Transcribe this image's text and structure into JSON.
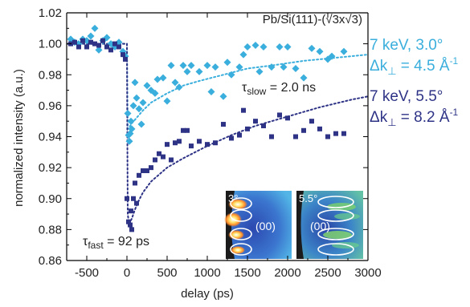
{
  "colors": {
    "light": "#3aaedc",
    "dark": "#2e3386",
    "axis": "#000000"
  },
  "chart_data": {
    "type": "scatter",
    "title": "Pb/Si(111)-(√3x√3)",
    "xlabel": "delay (ps)",
    "ylabel": "normalized intensity (a.u.)",
    "xlim": [
      -750,
      3000
    ],
    "ylim": [
      0.86,
      1.02
    ],
    "xticks": [
      -500,
      0,
      500,
      1000,
      1500,
      2000,
      2500,
      3000
    ],
    "yticks": [
      0.86,
      0.88,
      0.9,
      0.92,
      0.94,
      0.96,
      0.98,
      1.0,
      1.02
    ],
    "xtick_labels": [
      "-500",
      "0",
      "500",
      "1000",
      "1500",
      "2000",
      "2500",
      "3000"
    ],
    "ytick_labels": [
      "0.86",
      "0.88",
      "0.90",
      "0.92",
      "0.94",
      "0.96",
      "0.98",
      "1.00",
      "1.02"
    ],
    "grid": false,
    "annotations": {
      "tau_slow_symbol": "τ",
      "tau_slow_sub": "slow",
      "tau_slow_value": " = 2.0 ns",
      "tau_fast_symbol": "τ",
      "tau_fast_sub": "fast",
      "tau_fast_value": " = 92 ps"
    },
    "legend": [
      {
        "line1": "7 keV, 3.0°",
        "line2_prefix": "Δk",
        "line2_sub": "⊥",
        "line2_value": " = 4.5 Å",
        "line2_sup": "-1"
      },
      {
        "line1": "7 keV, 5.5°",
        "line2_prefix": "Δk",
        "line2_sub": "⊥",
        "line2_value": " = 8.2 Å",
        "line2_sup": "-1"
      }
    ],
    "insets": [
      {
        "angle_label": "3°",
        "spot_label": "(00)"
      },
      {
        "angle_label": "5.5°",
        "spot_label": "(00)"
      }
    ],
    "series": [
      {
        "marker": "diamond",
        "color": "#3aaedc",
        "x": [
          -700,
          -650,
          -600,
          -550,
          -500,
          -450,
          -400,
          -350,
          -300,
          -250,
          -200,
          -150,
          -100,
          -50,
          -20,
          10,
          20,
          30,
          40,
          50,
          60,
          80,
          100,
          120,
          150,
          180,
          200,
          250,
          300,
          350,
          380,
          450,
          500,
          550,
          600,
          650,
          700,
          750,
          800,
          900,
          1000,
          1050,
          1100,
          1200,
          1250,
          1300,
          1400,
          1450,
          1500,
          1600,
          1650,
          1700,
          1800,
          1900,
          1950,
          2000,
          2100,
          2200,
          2300,
          2400,
          2500,
          2550,
          2700
        ],
        "y": [
          1.003,
          1.001,
          1.0,
          1.003,
          1.002,
          1.005,
          1.01,
          0.996,
          1.002,
          1.004,
          1.0,
          0.998,
          1.001,
          0.995,
          0.992,
          0.955,
          0.941,
          0.937,
          0.942,
          0.95,
          0.945,
          0.96,
          0.975,
          0.965,
          0.958,
          0.948,
          0.962,
          0.973,
          0.97,
          0.968,
          0.977,
          0.978,
          0.963,
          0.986,
          0.975,
          0.972,
          0.986,
          0.982,
          0.986,
          0.982,
          0.986,
          0.969,
          0.985,
          0.966,
          0.988,
          0.98,
          0.985,
          0.993,
          0.998,
          0.999,
          0.982,
          0.998,
          0.985,
          0.998,
          0.985,
          0.998,
          0.984,
          0.978,
          0.997,
          0.995,
          0.99,
          0.992,
          0.995
        ]
      },
      {
        "marker": "square",
        "color": "#2e3386",
        "x": [
          -700,
          -650,
          -600,
          -550,
          -500,
          -450,
          -400,
          -350,
          -300,
          -250,
          -200,
          -150,
          -100,
          -50,
          -20,
          0,
          20,
          40,
          50,
          60,
          80,
          100,
          120,
          150,
          200,
          250,
          300,
          350,
          400,
          450,
          500,
          550,
          600,
          650,
          700,
          750,
          800,
          900,
          1000,
          1100,
          1200,
          1300,
          1400,
          1450,
          1500,
          1600,
          1700,
          1800,
          1900,
          2000,
          2100,
          2200,
          2300,
          2400,
          2500,
          2600,
          2700
        ],
        "y": [
          1.0,
          1.001,
          0.998,
          1.002,
          0.998,
          1.001,
          1.0,
          0.999,
          1.002,
          0.998,
          0.996,
          1.0,
          0.998,
          0.993,
          0.99,
          0.9,
          0.885,
          0.883,
          0.892,
          0.88,
          0.9,
          0.91,
          0.897,
          0.915,
          0.918,
          0.918,
          0.92,
          0.925,
          0.929,
          0.927,
          0.935,
          0.925,
          0.936,
          0.937,
          0.944,
          0.944,
          0.934,
          0.937,
          0.935,
          0.936,
          0.948,
          0.939,
          0.941,
          0.957,
          0.945,
          0.95,
          0.947,
          0.94,
          0.954,
          0.952,
          0.94,
          0.944,
          0.95,
          0.945,
          0.94,
          0.942,
          0.942
        ]
      },
      {
        "name": "",
        "type": "line",
        "style": "dotted",
        "color": "#3aaedc",
        "x": [
          -750,
          -20,
          0,
          5,
          10,
          20,
          40,
          60,
          100,
          150,
          200,
          300,
          400,
          500,
          700,
          900,
          1200,
          1500,
          1800,
          2200,
          2600,
          3000
        ],
        "y": [
          1.0,
          1.0,
          1.0,
          0.97,
          0.945,
          0.9456,
          0.947,
          0.9486,
          0.951,
          0.954,
          0.957,
          0.962,
          0.965,
          0.968,
          0.973,
          0.976,
          0.98,
          0.984,
          0.986,
          0.989,
          0.991,
          0.993
        ]
      },
      {
        "name": "",
        "type": "line",
        "style": "dotted",
        "color": "#2e3386",
        "x": [
          -750,
          -20,
          0,
          5,
          10,
          20,
          40,
          60,
          100,
          150,
          200,
          300,
          500,
          700,
          1000,
          1300,
          1600,
          2000,
          2400,
          2800,
          3000
        ],
        "y": [
          1.0,
          1.0,
          1.0,
          0.94,
          0.89,
          0.886,
          0.885,
          0.887,
          0.893,
          0.899,
          0.904,
          0.911,
          0.92,
          0.926,
          0.934,
          0.941,
          0.947,
          0.953,
          0.959,
          0.964,
          0.966
        ]
      }
    ]
  }
}
